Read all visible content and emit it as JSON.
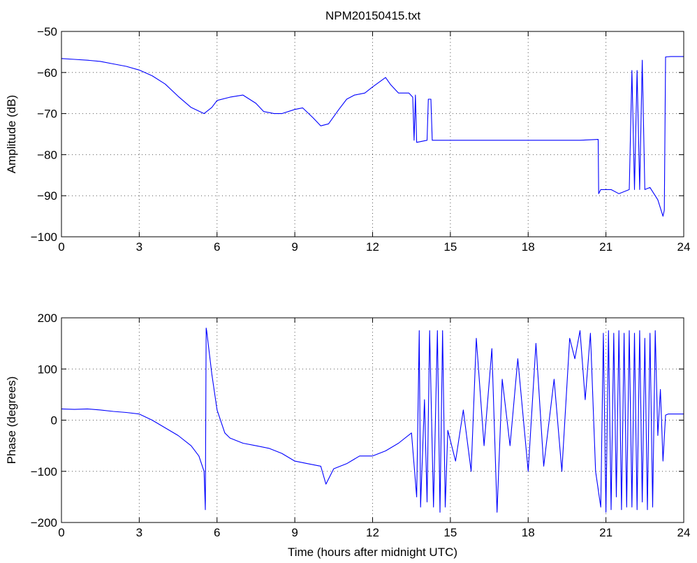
{
  "title": "NPM20150415.txt",
  "colors": {
    "trace": "#0000ff",
    "axes": "#000000",
    "background": "#ffffff"
  },
  "chart_data": [
    {
      "type": "line",
      "title": "NPM20150415.txt",
      "xlabel": "",
      "ylabel": "Amplitude (dB)",
      "xlim": [
        0,
        24
      ],
      "ylim": [
        -100,
        -50
      ],
      "xticks": [
        0,
        3,
        6,
        9,
        12,
        15,
        18,
        21,
        24
      ],
      "yticks": [
        -100,
        -90,
        -80,
        -70,
        -60,
        -50
      ],
      "xtick_labels": [
        "0",
        "3",
        "6",
        "9",
        "12",
        "15",
        "18",
        "21",
        "24"
      ],
      "ytick_labels": [
        "−100",
        "−90",
        "−80",
        "−70",
        "−60",
        "−50"
      ],
      "grid": true,
      "series": [
        {
          "x": [
            0,
            0.5,
            1,
            1.5,
            2,
            2.5,
            3,
            3.5,
            4,
            4.5,
            5,
            5.5,
            5.8,
            6,
            6.5,
            7,
            7.5,
            7.8,
            8.2,
            8.5,
            9,
            9.3,
            9.7,
            10,
            10.3,
            10.7,
            11,
            11.3,
            11.7,
            12,
            12.5,
            12.7,
            13,
            13.4,
            13.55,
            13.6,
            13.65,
            13.7,
            14.1,
            14.15,
            14.25,
            14.3,
            14.4,
            15,
            16,
            17,
            18,
            19,
            20,
            20.7,
            20.72,
            20.8,
            21.2,
            21.5,
            21.9,
            22.0,
            22.1,
            22.2,
            22.3,
            22.4,
            22.5,
            22.7,
            23,
            23.2,
            23.25,
            23.3,
            23.5,
            24
          ],
          "y": [
            -56.6,
            -56.8,
            -57,
            -57.3,
            -57.9,
            -58.5,
            -59.4,
            -60.8,
            -62.8,
            -65.8,
            -68.5,
            -70,
            -68.5,
            -66.8,
            -66,
            -65.5,
            -67.5,
            -69.5,
            -70,
            -70,
            -69,
            -68.6,
            -71,
            -73,
            -72.5,
            -69,
            -66.5,
            -65.5,
            -65,
            -63.5,
            -61.2,
            -63,
            -65,
            -65,
            -66,
            -76.5,
            -65.5,
            -77,
            -76.5,
            -66.5,
            -66.5,
            -76.5,
            -76.5,
            -76.5,
            -76.5,
            -76.5,
            -76.5,
            -76.5,
            -76.5,
            -76.3,
            -89.5,
            -88.5,
            -88.5,
            -89.5,
            -88.5,
            -59.5,
            -88.5,
            -59.5,
            -88.5,
            -57,
            -88.5,
            -88,
            -91,
            -95,
            -93.5,
            -56.2,
            -56.1,
            -56.1
          ]
        }
      ]
    },
    {
      "type": "line",
      "title": "",
      "xlabel": "Time (hours after midnight UTC)",
      "ylabel": "Phase (degrees)",
      "xlim": [
        0,
        24
      ],
      "ylim": [
        -200,
        200
      ],
      "xticks": [
        0,
        3,
        6,
        9,
        12,
        15,
        18,
        21,
        24
      ],
      "yticks": [
        -200,
        -100,
        0,
        100,
        200
      ],
      "xtick_labels": [
        "0",
        "3",
        "6",
        "9",
        "12",
        "15",
        "18",
        "21",
        "24"
      ],
      "ytick_labels": [
        "−200",
        "−100",
        "0",
        "100",
        "200"
      ],
      "grid": true,
      "series": [
        {
          "x": [
            0,
            0.5,
            1,
            1.5,
            2,
            2.5,
            3,
            3.5,
            4,
            4.5,
            5,
            5.3,
            5.5,
            5.55,
            5.58,
            5.6,
            5.8,
            6,
            6.3,
            6.5,
            7,
            7.5,
            8,
            8.5,
            9,
            9.5,
            10,
            10.2,
            10.5,
            11,
            11.5,
            12,
            12.5,
            13,
            13.5,
            13.7,
            13.8,
            13.85,
            14,
            14.1,
            14.2,
            14.35,
            14.5,
            14.6,
            14.7,
            14.8,
            14.9,
            15.2,
            15.5,
            15.8,
            16,
            16.3,
            16.6,
            16.8,
            17,
            17.3,
            17.6,
            18,
            18.3,
            18.6,
            19,
            19.3,
            19.6,
            19.8,
            20,
            20.2,
            20.4,
            20.6,
            20.8,
            20.9,
            21.0,
            21.1,
            21.2,
            21.3,
            21.4,
            21.5,
            21.6,
            21.7,
            21.8,
            21.9,
            22.0,
            22.1,
            22.2,
            22.3,
            22.4,
            22.5,
            22.6,
            22.7,
            22.8,
            22.9,
            23.0,
            23.1,
            23.2,
            23.3,
            23.4,
            23.6,
            24
          ],
          "y": [
            22,
            21,
            22,
            20,
            17,
            15,
            12,
            0,
            -15,
            -30,
            -50,
            -70,
            -100,
            -175,
            180,
            175,
            90,
            20,
            -25,
            -35,
            -45,
            -50,
            -55,
            -65,
            -80,
            -85,
            -90,
            -125,
            -95,
            -85,
            -70,
            -70,
            -60,
            -45,
            -25,
            -150,
            175,
            -170,
            40,
            -160,
            175,
            -170,
            175,
            -180,
            175,
            -170,
            -20,
            -80,
            20,
            -100,
            160,
            -50,
            140,
            -180,
            80,
            -50,
            120,
            -100,
            150,
            -90,
            80,
            -100,
            160,
            120,
            175,
            40,
            170,
            -100,
            -170,
            170,
            -180,
            175,
            -175,
            170,
            -150,
            175,
            -175,
            170,
            -170,
            175,
            -170,
            170,
            -175,
            175,
            -160,
            160,
            -175,
            170,
            -170,
            175,
            -30,
            60,
            -80,
            10,
            12,
            12,
            12
          ]
        }
      ]
    }
  ]
}
